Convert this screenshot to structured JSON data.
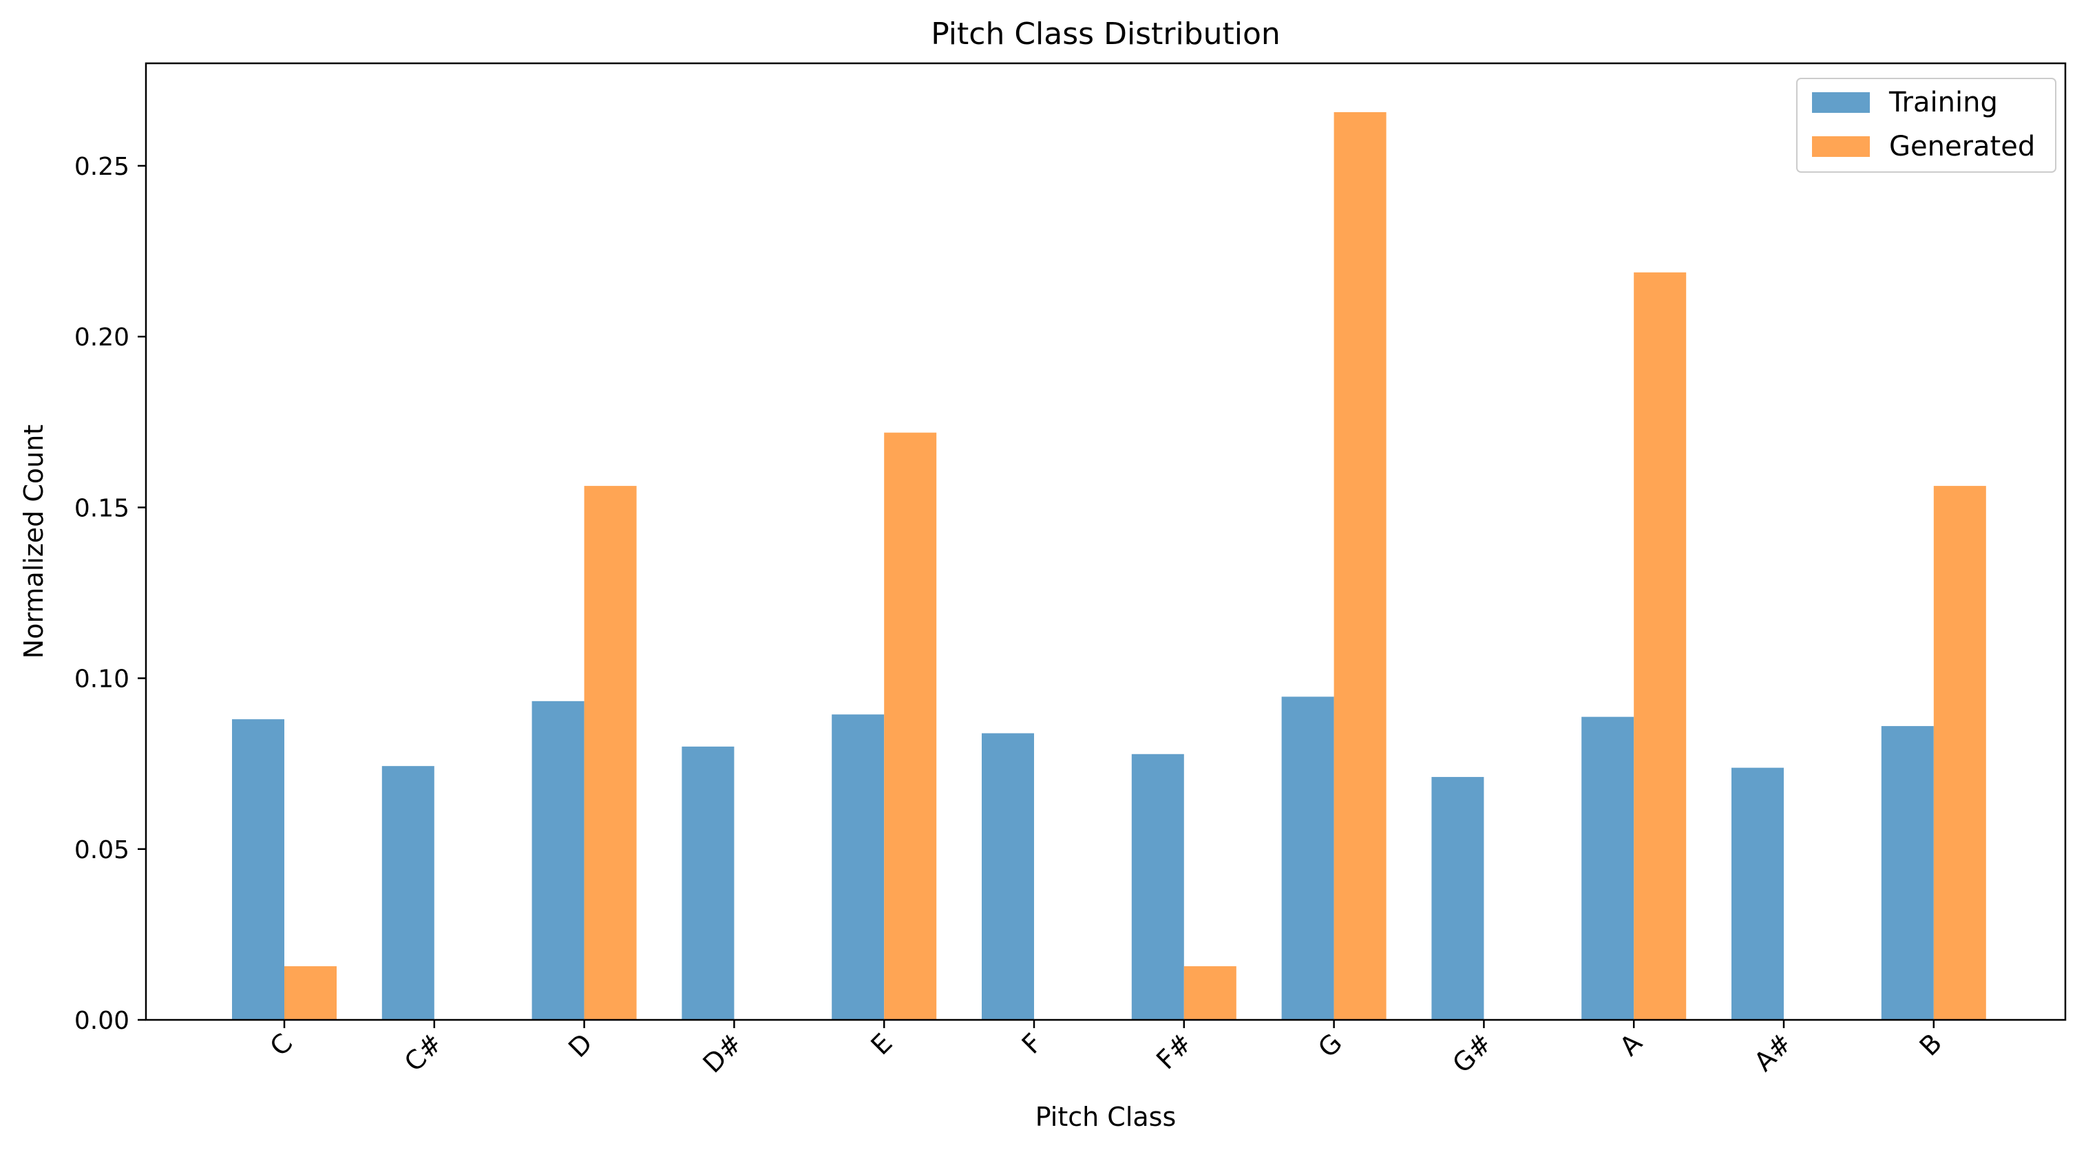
{
  "chart_data": {
    "type": "bar",
    "title": "Pitch Class Distribution",
    "xlabel": "Pitch Class",
    "ylabel": "Normalized Count",
    "categories": [
      "C",
      "C#",
      "D",
      "D#",
      "E",
      "F",
      "F#",
      "G",
      "G#",
      "A",
      "A#",
      "B"
    ],
    "series": [
      {
        "name": "Training",
        "color": "#629fca",
        "values": [
          0.088,
          0.0743,
          0.0933,
          0.08,
          0.0894,
          0.0839,
          0.0778,
          0.0946,
          0.0711,
          0.0887,
          0.0738,
          0.086
        ]
      },
      {
        "name": "Generated",
        "color": "#ffa554",
        "values": [
          0.0157,
          0.0,
          0.1563,
          0.0,
          0.1719,
          0.0,
          0.0157,
          0.2657,
          0.0,
          0.2188,
          0.0,
          0.1563
        ]
      }
    ],
    "ylim": [
      0,
      0.28
    ],
    "yticks": [
      "0.00",
      "0.05",
      "0.10",
      "0.15",
      "0.20",
      "0.25"
    ],
    "grid": false,
    "legend_position": "top-right"
  }
}
